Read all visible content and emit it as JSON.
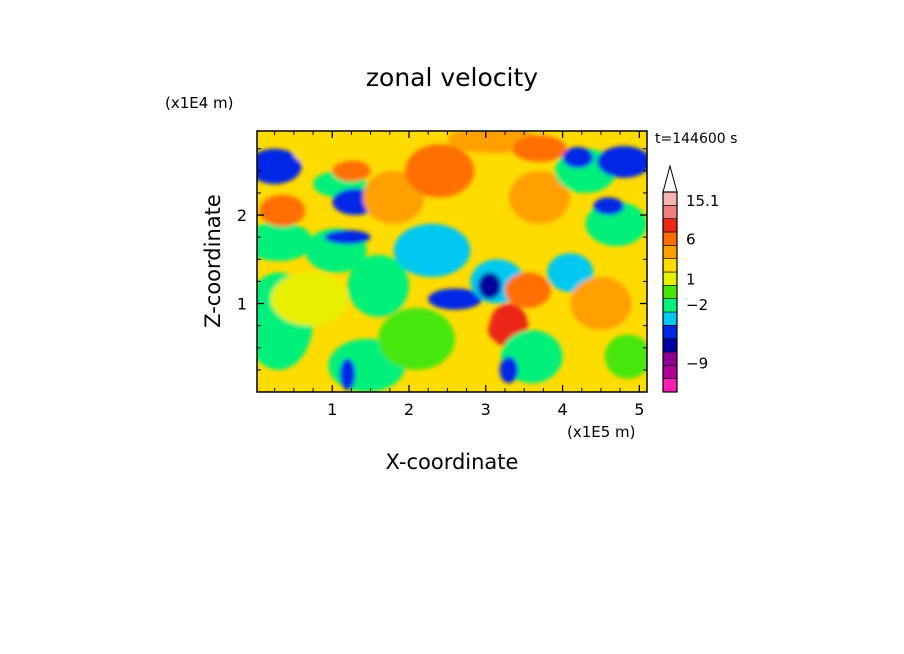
{
  "chart_data": {
    "type": "heatmap",
    "title": "zonal velocity",
    "xlabel": "X-coordinate",
    "ylabel": "Z-coordinate",
    "x_unit": "(x1E5 m)",
    "y_unit": "(x1E4 m)",
    "annotation": "t=144600 s",
    "xlim": [
      0.02,
      5.1
    ],
    "ylim": [
      0.0,
      2.95
    ],
    "x_ticks": [
      {
        "value": 1,
        "label": "1"
      },
      {
        "value": 2,
        "label": "2"
      },
      {
        "value": 3,
        "label": "3"
      },
      {
        "value": 4,
        "label": "4"
      },
      {
        "value": 5,
        "label": "5"
      }
    ],
    "y_ticks": [
      {
        "value": 1,
        "label": "1"
      },
      {
        "value": 2,
        "label": "2"
      }
    ],
    "colorbar": {
      "levels_bottom_to_top": [
        {
          "color": "#ff1eb4"
        },
        {
          "color": "#b40096"
        },
        {
          "color": "#8c0096"
        },
        {
          "color": "#0000a0"
        },
        {
          "color": "#0028e6"
        },
        {
          "color": "#00c8f0"
        },
        {
          "color": "#00f07a"
        },
        {
          "color": "#46e60a"
        },
        {
          "color": "#e6f000"
        },
        {
          "color": "#ffdc00"
        },
        {
          "color": "#ffa000"
        },
        {
          "color": "#ff6e00"
        },
        {
          "color": "#eb2814"
        },
        {
          "color": "#f08080"
        },
        {
          "color": "#f8b4b4"
        }
      ],
      "labels": [
        {
          "value": "15.1",
          "level": 14.4
        },
        {
          "value": "6",
          "level": 11.5
        },
        {
          "value": "1",
          "level": 8.5
        },
        {
          "value": "−2",
          "level": 6.6
        },
        {
          "value": "−9",
          "level": 2.2
        }
      ]
    },
    "background_color": "#ffdc00",
    "field_blobs": [
      {
        "x": 0.25,
        "z": 2.55,
        "rx": 0.35,
        "rz": 0.2,
        "level": 4
      },
      {
        "x": 0.3,
        "z": 1.7,
        "rx": 0.45,
        "rz": 0.22,
        "level": 6
      },
      {
        "x": 0.3,
        "z": 0.8,
        "rx": 0.45,
        "rz": 0.55,
        "level": 6
      },
      {
        "x": 0.35,
        "z": 2.05,
        "rx": 0.3,
        "rz": 0.18,
        "level": 11
      },
      {
        "x": 0.7,
        "z": 1.05,
        "rx": 0.5,
        "rz": 0.3,
        "level": 8
      },
      {
        "x": 0.9,
        "z": 2.7,
        "rx": 0.4,
        "rz": 0.15,
        "level": 9
      },
      {
        "x": 1.1,
        "z": 2.35,
        "rx": 0.35,
        "rz": 0.15,
        "level": 6
      },
      {
        "x": 1.05,
        "z": 1.6,
        "rx": 0.4,
        "rz": 0.25,
        "level": 6
      },
      {
        "x": 1.25,
        "z": 2.5,
        "rx": 0.25,
        "rz": 0.12,
        "level": 11
      },
      {
        "x": 1.3,
        "z": 2.15,
        "rx": 0.3,
        "rz": 0.15,
        "level": 4
      },
      {
        "x": 1.2,
        "z": 1.75,
        "rx": 0.3,
        "rz": 0.08,
        "level": 4
      },
      {
        "x": 1.45,
        "z": 0.3,
        "rx": 0.5,
        "rz": 0.3,
        "level": 6
      },
      {
        "x": 1.6,
        "z": 1.2,
        "rx": 0.4,
        "rz": 0.35,
        "level": 6
      },
      {
        "x": 1.8,
        "z": 2.2,
        "rx": 0.4,
        "rz": 0.3,
        "level": 10
      },
      {
        "x": 2.3,
        "z": 1.6,
        "rx": 0.5,
        "rz": 0.3,
        "level": 5
      },
      {
        "x": 2.4,
        "z": 2.5,
        "rx": 0.45,
        "rz": 0.3,
        "level": 11
      },
      {
        "x": 2.1,
        "z": 0.6,
        "rx": 0.5,
        "rz": 0.35,
        "level": 7
      },
      {
        "x": 2.6,
        "z": 1.05,
        "rx": 0.35,
        "rz": 0.12,
        "level": 4
      },
      {
        "x": 3.1,
        "z": 2.85,
        "rx": 0.6,
        "rz": 0.15,
        "level": 10
      },
      {
        "x": 3.15,
        "z": 1.25,
        "rx": 0.35,
        "rz": 0.25,
        "level": 5
      },
      {
        "x": 3.05,
        "z": 1.2,
        "rx": 0.15,
        "rz": 0.15,
        "level": 3
      },
      {
        "x": 3.3,
        "z": 0.75,
        "rx": 0.25,
        "rz": 0.25,
        "level": 12
      },
      {
        "x": 3.15,
        "z": 0.7,
        "rx": 0.12,
        "rz": 0.12,
        "level": 12
      },
      {
        "x": 3.55,
        "z": 1.15,
        "rx": 0.3,
        "rz": 0.2,
        "level": 11
      },
      {
        "x": 3.7,
        "z": 2.2,
        "rx": 0.4,
        "rz": 0.3,
        "level": 10
      },
      {
        "x": 3.7,
        "z": 2.75,
        "rx": 0.35,
        "rz": 0.15,
        "level": 11
      },
      {
        "x": 3.6,
        "z": 0.4,
        "rx": 0.4,
        "rz": 0.3,
        "level": 6
      },
      {
        "x": 4.3,
        "z": 2.5,
        "rx": 0.4,
        "rz": 0.25,
        "level": 6
      },
      {
        "x": 4.2,
        "z": 2.65,
        "rx": 0.2,
        "rz": 0.12,
        "level": 4
      },
      {
        "x": 4.1,
        "z": 1.35,
        "rx": 0.3,
        "rz": 0.22,
        "level": 5
      },
      {
        "x": 4.5,
        "z": 1.0,
        "rx": 0.4,
        "rz": 0.3,
        "level": 10
      },
      {
        "x": 4.8,
        "z": 2.6,
        "rx": 0.35,
        "rz": 0.18,
        "level": 4
      },
      {
        "x": 4.7,
        "z": 1.9,
        "rx": 0.4,
        "rz": 0.25,
        "level": 6
      },
      {
        "x": 4.85,
        "z": 0.4,
        "rx": 0.3,
        "rz": 0.25,
        "level": 7
      },
      {
        "x": 4.6,
        "z": 2.1,
        "rx": 0.2,
        "rz": 0.1,
        "level": 4
      },
      {
        "x": 1.2,
        "z": 0.2,
        "rx": 0.1,
        "rz": 0.18,
        "level": 4
      },
      {
        "x": 3.3,
        "z": 0.25,
        "rx": 0.12,
        "rz": 0.15,
        "level": 4
      }
    ]
  }
}
